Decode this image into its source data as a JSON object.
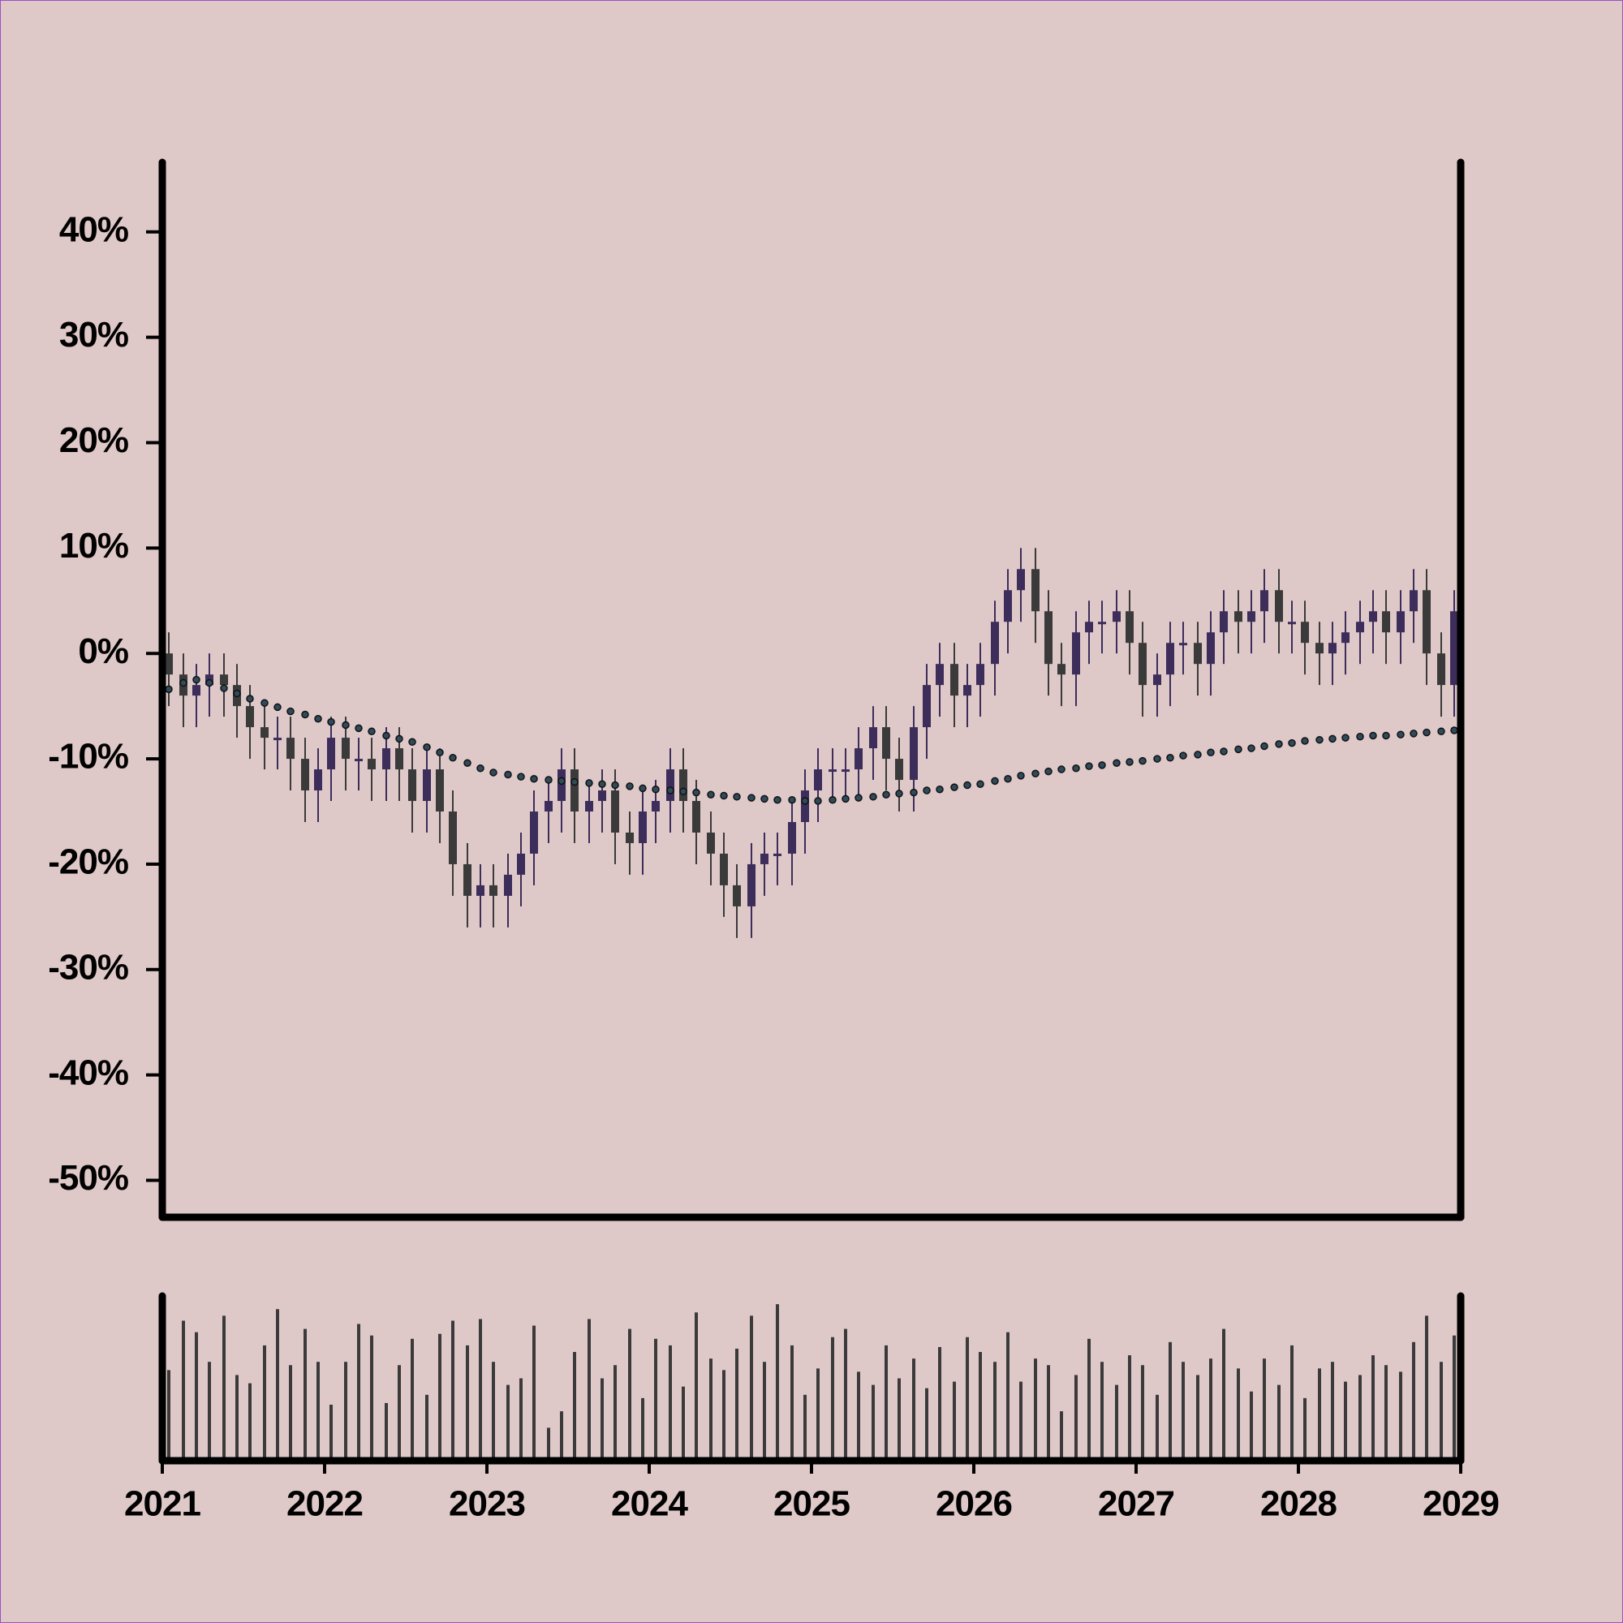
{
  "chart_data": {
    "type": "candlestick",
    "x": [
      2021.04,
      2021.13,
      2021.21,
      2021.29,
      2021.38,
      2021.46,
      2021.54,
      2021.63,
      2021.71,
      2021.79,
      2021.88,
      2021.96,
      2022.04,
      2022.13,
      2022.21,
      2022.29,
      2022.38,
      2022.46,
      2022.54,
      2022.63,
      2022.71,
      2022.79,
      2022.88,
      2022.96,
      2023.04,
      2023.13,
      2023.21,
      2023.29,
      2023.38,
      2023.46,
      2023.54,
      2023.63,
      2023.71,
      2023.79,
      2023.88,
      2023.96,
      2024.04,
      2024.13,
      2024.21,
      2024.29,
      2024.38,
      2024.46,
      2024.54,
      2024.63,
      2024.71,
      2024.79,
      2024.88,
      2024.96,
      2025.04,
      2025.13,
      2025.21,
      2025.29,
      2025.38,
      2025.46,
      2025.54,
      2025.63,
      2025.71,
      2025.79,
      2025.88,
      2025.96,
      2026.04,
      2026.13,
      2026.21,
      2026.29,
      2026.38,
      2026.46,
      2026.54,
      2026.63,
      2026.71,
      2026.79,
      2026.88,
      2026.96,
      2027.04,
      2027.13,
      2027.21,
      2027.29,
      2027.38,
      2027.46,
      2027.54,
      2027.63,
      2027.71,
      2027.79,
      2027.88,
      2027.96,
      2028.04,
      2028.13,
      2028.21,
      2028.29,
      2028.38,
      2028.46,
      2028.54,
      2028.63,
      2028.71,
      2028.79,
      2028.88,
      2028.96
    ],
    "open": [
      0,
      -2,
      -4,
      -3,
      -2,
      -3,
      -5,
      -7,
      -8,
      -8,
      -10,
      -13,
      -11,
      -8,
      -10,
      -10,
      -11,
      -9,
      -11,
      -14,
      -11,
      -15,
      -20,
      -23,
      -22,
      -23,
      -21,
      -19,
      -15,
      -14,
      -11,
      -15,
      -14,
      -13,
      -17,
      -18,
      -15,
      -14,
      -11,
      -14,
      -17,
      -19,
      -22,
      -24,
      -20,
      -19,
      -19,
      -16,
      -13,
      -11,
      -11,
      -11,
      -9,
      -7,
      -10,
      -12,
      -7,
      -3,
      -1,
      -4,
      -3,
      -1,
      3,
      6,
      8,
      4,
      -1,
      -2,
      2,
      3,
      3,
      4,
      1,
      -3,
      -2,
      1,
      1,
      -1,
      2,
      4,
      3,
      4,
      6,
      3,
      3,
      1,
      0,
      1,
      2,
      3,
      4,
      2,
      4,
      6,
      0,
      -3
    ],
    "high": [
      2,
      0,
      -1,
      0,
      0,
      -1,
      -3,
      -5,
      -6,
      -6,
      -8,
      -9,
      -6,
      -6,
      -8,
      -8,
      -7,
      -7,
      -9,
      -9,
      -9,
      -13,
      -18,
      -20,
      -20,
      -19,
      -17,
      -13,
      -12,
      -9,
      -9,
      -12,
      -11,
      -11,
      -15,
      -13,
      -12,
      -9,
      -9,
      -12,
      -15,
      -17,
      -20,
      -18,
      -17,
      -17,
      -14,
      -11,
      -9,
      -9,
      -9,
      -7,
      -5,
      -5,
      -8,
      -5,
      -1,
      1,
      1,
      -1,
      1,
      5,
      8,
      10,
      10,
      6,
      1,
      4,
      5,
      5,
      6,
      6,
      3,
      0,
      3,
      3,
      3,
      4,
      6,
      6,
      6,
      8,
      8,
      5,
      5,
      3,
      3,
      4,
      5,
      6,
      6,
      6,
      8,
      8,
      2,
      6
    ],
    "low": [
      -5,
      -7,
      -7,
      -6,
      -6,
      -8,
      -10,
      -11,
      -11,
      -13,
      -16,
      -16,
      -14,
      -13,
      -13,
      -14,
      -14,
      -14,
      -17,
      -17,
      -18,
      -23,
      -26,
      -26,
      -26,
      -26,
      -24,
      -22,
      -18,
      -17,
      -18,
      -18,
      -17,
      -20,
      -21,
      -21,
      -18,
      -17,
      -17,
      -20,
      -22,
      -25,
      -27,
      -27,
      -23,
      -22,
      -22,
      -19,
      -16,
      -14,
      -14,
      -14,
      -12,
      -13,
      -15,
      -15,
      -10,
      -6,
      -7,
      -7,
      -6,
      -4,
      0,
      3,
      1,
      -4,
      -5,
      -5,
      -1,
      0,
      0,
      -2,
      -6,
      -6,
      -5,
      -2,
      -4,
      -4,
      -1,
      0,
      0,
      1,
      0,
      0,
      -2,
      -3,
      -3,
      -2,
      -1,
      0,
      -1,
      -1,
      1,
      -3,
      -6,
      -6
    ],
    "close": [
      -2,
      -4,
      -3,
      -2,
      -3,
      -5,
      -7,
      -8,
      -8,
      -10,
      -13,
      -11,
      -8,
      -10,
      -10,
      -11,
      -9,
      -11,
      -14,
      -11,
      -15,
      -20,
      -23,
      -22,
      -23,
      -21,
      -19,
      -15,
      -14,
      -11,
      -15,
      -14,
      -13,
      -17,
      -18,
      -15,
      -14,
      -11,
      -14,
      -17,
      -19,
      -22,
      -24,
      -20,
      -19,
      -19,
      -16,
      -13,
      -11,
      -11,
      -11,
      -9,
      -7,
      -10,
      -12,
      -7,
      -3,
      -1,
      -4,
      -3,
      -1,
      3,
      6,
      8,
      4,
      -1,
      -2,
      2,
      3,
      3,
      4,
      1,
      -3,
      -2,
      1,
      1,
      -1,
      2,
      4,
      3,
      4,
      6,
      3,
      3,
      1,
      0,
      1,
      2,
      3,
      4,
      2,
      4,
      6,
      0,
      -3,
      4
    ],
    "up_color": "#3c2d5a",
    "down_color": "#3a3a3a",
    "moving_average": {
      "color": "#2f4a5a",
      "values": [
        -3.4,
        -2.8,
        -2.5,
        -2.8,
        -3.3,
        -3.8,
        -4.3,
        -4.7,
        -5.1,
        -5.5,
        -5.8,
        -6.2,
        -6.5,
        -6.8,
        -7.1,
        -7.4,
        -7.8,
        -8.1,
        -8.4,
        -8.9,
        -9.4,
        -9.9,
        -10.4,
        -10.9,
        -11.3,
        -11.5,
        -11.7,
        -11.9,
        -12.0,
        -12.1,
        -12.2,
        -12.3,
        -12.4,
        -12.5,
        -12.6,
        -12.8,
        -12.9,
        -13.0,
        -13.1,
        -13.2,
        -13.4,
        -13.5,
        -13.6,
        -13.7,
        -13.8,
        -13.9,
        -13.9,
        -14.0,
        -14.0,
        -13.9,
        -13.8,
        -13.7,
        -13.6,
        -13.4,
        -13.3,
        -13.2,
        -13.0,
        -12.9,
        -12.7,
        -12.5,
        -12.4,
        -12.1,
        -11.9,
        -11.6,
        -11.4,
        -11.2,
        -11.0,
        -10.9,
        -10.7,
        -10.6,
        -10.4,
        -10.3,
        -10.2,
        -10.0,
        -9.9,
        -9.7,
        -9.6,
        -9.4,
        -9.3,
        -9.1,
        -9.0,
        -8.8,
        -8.6,
        -8.5,
        -8.3,
        -8.2,
        -8.1,
        -8.0,
        -7.9,
        -7.8,
        -7.8,
        -7.7,
        -7.6,
        -7.5,
        -7.4,
        -7.3
      ]
    },
    "volume": [
      55,
      85,
      78,
      60,
      88,
      52,
      47,
      70,
      92,
      58,
      80,
      60,
      34,
      60,
      83,
      76,
      35,
      58,
      74,
      40,
      77,
      85,
      70,
      86,
      60,
      46,
      50,
      82,
      20,
      30,
      66,
      86,
      50,
      58,
      80,
      38,
      74,
      70,
      45,
      90,
      62,
      55,
      68,
      88,
      60,
      95,
      70,
      40,
      56,
      75,
      80,
      54,
      46,
      70,
      50,
      62,
      44,
      69,
      48,
      75,
      66,
      60,
      78,
      48,
      62,
      58,
      30,
      52,
      74,
      60,
      46,
      64,
      58,
      40,
      72,
      60,
      52,
      62,
      80,
      56,
      42,
      62,
      46,
      70,
      38,
      56,
      60,
      48,
      52,
      64,
      58,
      54,
      72,
      88,
      60,
      76
    ],
    "volume_color": "#3a3a3a",
    "volume_ylim": [
      0,
      100
    ],
    "xlim": [
      2021,
      2029
    ],
    "xticks": [
      2021,
      2022,
      2023,
      2024,
      2025,
      2026,
      2027,
      2028,
      2029
    ],
    "ylim": [
      -53.5,
      46.6
    ],
    "yticks": [
      {
        "value": -50,
        "label": "-50%"
      },
      {
        "value": -40,
        "label": "-40%"
      },
      {
        "value": -30,
        "label": "-30%"
      },
      {
        "value": -20,
        "label": "-20%"
      },
      {
        "value": -10,
        "label": "-10%"
      },
      {
        "value": 0,
        "label": "0%"
      },
      {
        "value": 10,
        "label": "10%"
      },
      {
        "value": 20,
        "label": "20%"
      },
      {
        "value": 30,
        "label": "30%"
      },
      {
        "value": 40,
        "label": "40%"
      }
    ]
  }
}
